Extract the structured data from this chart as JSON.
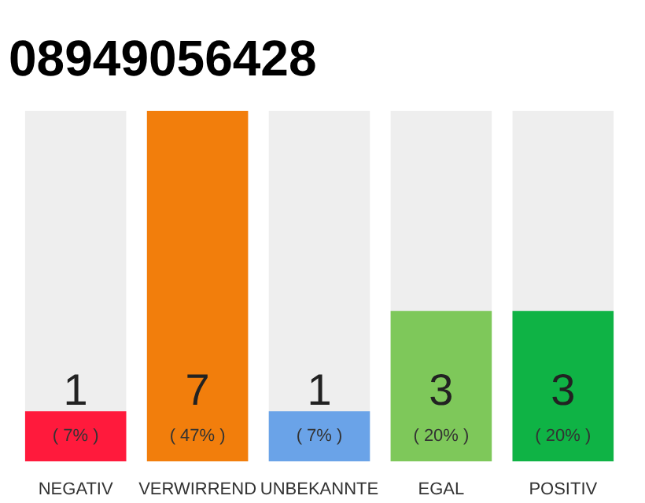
{
  "chart_data": {
    "type": "bar",
    "title": "08949056428",
    "categories": [
      "NEGATIV",
      "VERWIRREND",
      "UNBEKANNTE",
      "EGAL",
      "POSITIV"
    ],
    "values": [
      1,
      7,
      1,
      3,
      3
    ],
    "colors": [
      "#ff1a3c",
      "#f27e0c",
      "#6aa3e8",
      "#7ec85a",
      "#0fb345"
    ],
    "data_labels": true,
    "annotations": [
      {
        "text": "( 7% )",
        "x": "NEGATIV",
        "y": 0
      },
      {
        "text": "( 47% )",
        "x": "VERWIRREND",
        "y": 0
      },
      {
        "text": "( 7% )",
        "x": "UNBEKANNTE",
        "y": 0
      },
      {
        "text": "( 20% )",
        "x": "EGAL",
        "y": 0
      },
      {
        "text": "( 20% )",
        "x": "POSITIV",
        "y": 0
      }
    ],
    "ylim": [
      0,
      7
    ],
    "tick_labels": "x",
    "grid": false
  }
}
